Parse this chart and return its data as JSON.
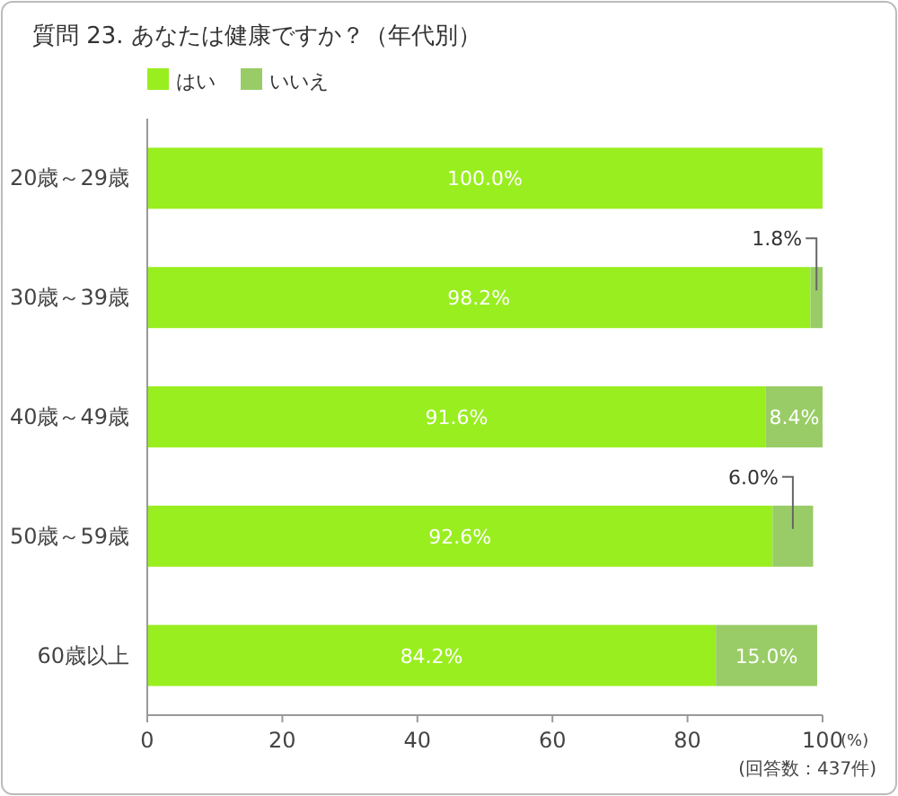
{
  "chart_data": {
    "type": "bar",
    "orientation": "horizontal",
    "stacked": true,
    "title": "質問 23. あなたは健康ですか？（年代別）",
    "categories": [
      "20歳～29歳",
      "30歳～39歳",
      "40歳～49歳",
      "50歳～59歳",
      "60歳以上"
    ],
    "series": [
      {
        "name": "はい",
        "color": "#99ee1f",
        "values": [
          100.0,
          98.2,
          91.6,
          92.6,
          84.2
        ],
        "value_labels": [
          "100.0%",
          "98.2%",
          "91.6%",
          "92.6%",
          "84.2%"
        ]
      },
      {
        "name": "いいえ",
        "color": "#99cc66",
        "values": [
          null,
          1.8,
          8.4,
          6.0,
          15.0
        ],
        "value_labels": [
          null,
          "1.8%",
          "8.4%",
          "6.0%",
          "15.0%"
        ]
      }
    ],
    "xlim": [
      0,
      100
    ],
    "xticks": [
      0,
      20,
      40,
      60,
      80,
      100
    ],
    "xlabel": "(%)",
    "legend": "top left",
    "grid": false,
    "annotations": [
      "(回答数：437件)"
    ]
  }
}
